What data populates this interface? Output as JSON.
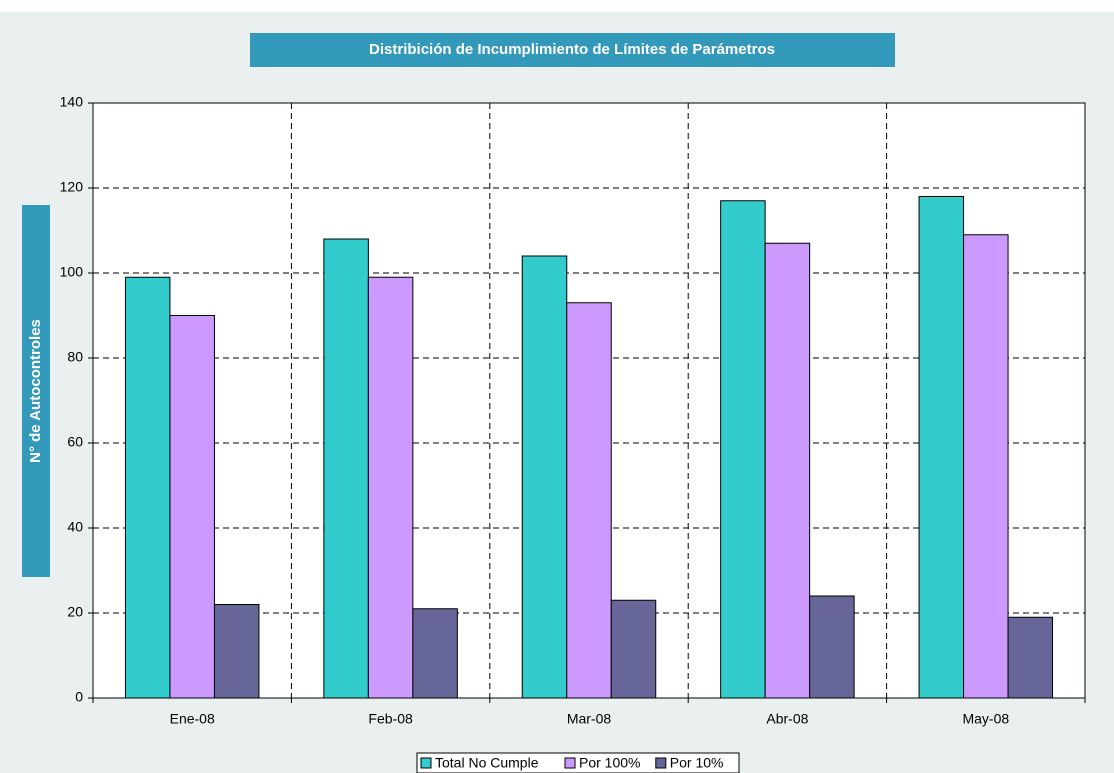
{
  "chart_data": {
    "type": "bar",
    "title": "Distribición de Incumplimiento de Límites de Parámetros",
    "y_label": "N° de Autocontroles",
    "categories": [
      "Ene-08",
      "Feb-08",
      "Mar-08",
      "Abr-08",
      "May-08"
    ],
    "series": [
      {
        "name": "Total No Cumple",
        "color": "#33cccc",
        "values": [
          99,
          108,
          104,
          117,
          118
        ]
      },
      {
        "name": "Por 100%",
        "color": "#cc99ff",
        "values": [
          90,
          99,
          93,
          107,
          109
        ]
      },
      {
        "name": "Por 10%",
        "color": "#666699",
        "values": [
          22,
          21,
          23,
          24,
          19
        ]
      }
    ],
    "ylim": [
      0,
      140
    ],
    "yticks": [
      0,
      20,
      40,
      60,
      80,
      100,
      120,
      140
    ],
    "grid": true
  }
}
